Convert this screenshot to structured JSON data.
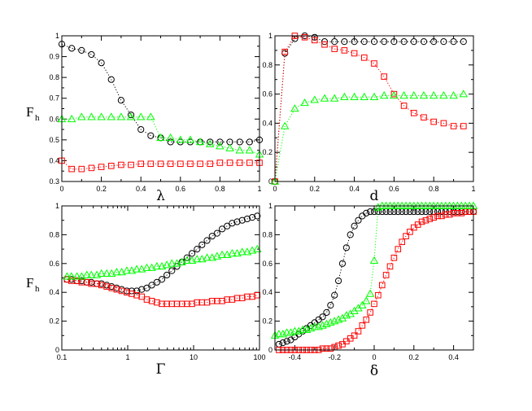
{
  "chart_data": [
    {
      "type": "scatter",
      "panel": "top-left",
      "xlabel": "λ",
      "ylabel": "F",
      "ylabel_sub": "h",
      "xlim": [
        0,
        1
      ],
      "ylim": [
        0.3,
        1
      ],
      "xticks": [
        "0",
        "0.2",
        "0.4",
        "0.6",
        "0.8",
        "1"
      ],
      "yticks": [
        "0.3",
        "0.4",
        "0.5",
        "0.6",
        "0.7",
        "0.8",
        "0.9",
        "1"
      ],
      "xtick_values": [
        0,
        0.2,
        0.4,
        0.6,
        0.8,
        1
      ],
      "ytick_values": [
        0.3,
        0.4,
        0.5,
        0.6,
        0.7,
        0.8,
        0.9,
        1
      ],
      "xscale": "linear",
      "series": [
        {
          "name": "black",
          "marker": "circle",
          "color": "#000000",
          "line": "dotted",
          "x": [
            0,
            0.05,
            0.1,
            0.15,
            0.2,
            0.25,
            0.3,
            0.35,
            0.4,
            0.45,
            0.5,
            0.55,
            0.6,
            0.65,
            0.7,
            0.75,
            0.8,
            0.85,
            0.9,
            0.95,
            1.0
          ],
          "y": [
            0.96,
            0.94,
            0.93,
            0.91,
            0.87,
            0.79,
            0.69,
            0.62,
            0.55,
            0.52,
            0.51,
            0.49,
            0.49,
            0.49,
            0.49,
            0.49,
            0.49,
            0.49,
            0.49,
            0.49,
            0.5
          ]
        },
        {
          "name": "red",
          "marker": "square",
          "color": "#ff0000",
          "line": "dotted",
          "x": [
            0,
            0.05,
            0.1,
            0.15,
            0.2,
            0.25,
            0.3,
            0.35,
            0.4,
            0.45,
            0.5,
            0.55,
            0.6,
            0.65,
            0.7,
            0.75,
            0.8,
            0.85,
            0.9,
            0.95,
            1.0
          ],
          "y": [
            0.4,
            0.36,
            0.36,
            0.365,
            0.37,
            0.375,
            0.38,
            0.38,
            0.385,
            0.385,
            0.385,
            0.385,
            0.385,
            0.385,
            0.385,
            0.385,
            0.39,
            0.39,
            0.39,
            0.39,
            0.39
          ]
        },
        {
          "name": "green",
          "marker": "triangle",
          "color": "#00ff00",
          "line": "dotted",
          "x": [
            0,
            0.05,
            0.1,
            0.15,
            0.2,
            0.25,
            0.3,
            0.35,
            0.4,
            0.45,
            0.5,
            0.55,
            0.6,
            0.65,
            0.7,
            0.75,
            0.8,
            0.85,
            0.9,
            0.95,
            1.0
          ],
          "y": [
            0.6,
            0.6,
            0.61,
            0.61,
            0.61,
            0.61,
            0.61,
            0.61,
            0.61,
            0.61,
            0.51,
            0.51,
            0.5,
            0.5,
            0.49,
            0.48,
            0.47,
            0.46,
            0.45,
            0.45,
            0.43
          ]
        }
      ]
    },
    {
      "type": "scatter",
      "panel": "top-right",
      "xlabel": "d",
      "xlim": [
        0,
        1
      ],
      "ylim": [
        0,
        1
      ],
      "xticks": [
        "0",
        "0.2",
        "0.4",
        "0.6",
        "0.8",
        "1"
      ],
      "yticks": [
        "0",
        "0.2",
        "0.4",
        "0.6",
        "0.8",
        "1"
      ],
      "xtick_values": [
        0,
        0.2,
        0.4,
        0.6,
        0.8,
        1
      ],
      "ytick_values": [
        0,
        0.2,
        0.4,
        0.6,
        0.8,
        1
      ],
      "xscale": "linear",
      "series": [
        {
          "name": "black",
          "marker": "circle",
          "color": "#000000",
          "line": "dotted",
          "x": [
            0,
            0.05,
            0.1,
            0.15,
            0.2,
            0.25,
            0.3,
            0.35,
            0.4,
            0.45,
            0.5,
            0.55,
            0.6,
            0.65,
            0.7,
            0.75,
            0.8,
            0.85,
            0.9,
            0.95
          ],
          "y": [
            0,
            0.88,
            0.98,
            1.0,
            0.99,
            0.96,
            0.96,
            0.96,
            0.96,
            0.96,
            0.96,
            0.96,
            0.96,
            0.96,
            0.96,
            0.96,
            0.96,
            0.96,
            0.96,
            0.96
          ]
        },
        {
          "name": "red",
          "marker": "square",
          "color": "#ff0000",
          "line": "dotted",
          "x": [
            0,
            0.05,
            0.1,
            0.15,
            0.2,
            0.25,
            0.3,
            0.35,
            0.4,
            0.45,
            0.5,
            0.55,
            0.6,
            0.65,
            0.7,
            0.75,
            0.8,
            0.85,
            0.9,
            0.95
          ],
          "y": [
            0,
            0.89,
            1.0,
            0.99,
            0.97,
            0.94,
            0.91,
            0.9,
            0.88,
            0.85,
            0.81,
            0.72,
            0.6,
            0.52,
            0.47,
            0.44,
            0.41,
            0.4,
            0.38,
            0.38
          ]
        },
        {
          "name": "green",
          "marker": "triangle",
          "color": "#00ff00",
          "line": "dotted",
          "x": [
            0,
            0.05,
            0.1,
            0.15,
            0.2,
            0.25,
            0.3,
            0.35,
            0.4,
            0.45,
            0.5,
            0.55,
            0.6,
            0.65,
            0.7,
            0.75,
            0.8,
            0.85,
            0.9,
            0.95
          ],
          "y": [
            0,
            0.38,
            0.5,
            0.54,
            0.56,
            0.57,
            0.57,
            0.58,
            0.58,
            0.58,
            0.58,
            0.59,
            0.59,
            0.59,
            0.59,
            0.59,
            0.59,
            0.59,
            0.59,
            0.6
          ]
        }
      ]
    },
    {
      "type": "scatter",
      "panel": "bottom-left",
      "xlabel": "Γ",
      "ylabel": "F",
      "ylabel_sub": "h",
      "xlim": [
        0.1,
        100
      ],
      "ylim": [
        0,
        1
      ],
      "xticks": [
        "0.1",
        "1",
        "10",
        "100"
      ],
      "yticks": [
        "0",
        "0.2",
        "0.4",
        "0.6",
        "0.8",
        "1"
      ],
      "xtick_values": [
        0.1,
        1,
        10,
        100
      ],
      "ytick_values": [
        0,
        0.2,
        0.4,
        0.6,
        0.8,
        1
      ],
      "xscale": "log",
      "series": [
        {
          "name": "black",
          "marker": "circle",
          "color": "#000000",
          "line": "dotted",
          "x": [
            0.12,
            0.14,
            0.17,
            0.2,
            0.24,
            0.28,
            0.34,
            0.4,
            0.48,
            0.57,
            0.68,
            0.81,
            0.97,
            1.15,
            1.37,
            1.63,
            1.95,
            2.32,
            2.77,
            3.3,
            3.93,
            4.68,
            5.58,
            6.65,
            7.93,
            9.45,
            11.3,
            13.4,
            16.0,
            19.1,
            22.7,
            27.1,
            32.3,
            38.5,
            45.8,
            54.6,
            65.1,
            77.6,
            92.5
          ],
          "y": [
            0.49,
            0.49,
            0.48,
            0.48,
            0.47,
            0.47,
            0.46,
            0.46,
            0.45,
            0.44,
            0.43,
            0.42,
            0.41,
            0.41,
            0.41,
            0.42,
            0.43,
            0.45,
            0.47,
            0.49,
            0.52,
            0.55,
            0.58,
            0.61,
            0.64,
            0.67,
            0.7,
            0.73,
            0.76,
            0.79,
            0.81,
            0.84,
            0.86,
            0.88,
            0.89,
            0.9,
            0.91,
            0.92,
            0.93
          ]
        },
        {
          "name": "red",
          "marker": "square",
          "color": "#ff0000",
          "line": "dotted",
          "x": [
            0.12,
            0.14,
            0.17,
            0.2,
            0.24,
            0.28,
            0.34,
            0.4,
            0.48,
            0.57,
            0.68,
            0.81,
            0.97,
            1.15,
            1.37,
            1.63,
            1.95,
            2.32,
            2.77,
            3.3,
            3.93,
            4.68,
            5.58,
            6.65,
            7.93,
            9.45,
            11.3,
            13.4,
            16.0,
            19.1,
            22.7,
            27.1,
            32.3,
            38.5,
            45.8,
            54.6,
            65.1,
            77.6,
            92.5
          ],
          "y": [
            0.49,
            0.48,
            0.48,
            0.47,
            0.47,
            0.46,
            0.46,
            0.45,
            0.44,
            0.43,
            0.42,
            0.41,
            0.4,
            0.39,
            0.38,
            0.37,
            0.35,
            0.34,
            0.33,
            0.32,
            0.32,
            0.32,
            0.32,
            0.32,
            0.32,
            0.32,
            0.33,
            0.33,
            0.33,
            0.34,
            0.34,
            0.34,
            0.35,
            0.35,
            0.36,
            0.36,
            0.37,
            0.37,
            0.38
          ]
        },
        {
          "name": "green",
          "marker": "triangle",
          "color": "#00ff00",
          "line": "dotted",
          "x": [
            0.12,
            0.14,
            0.17,
            0.2,
            0.24,
            0.28,
            0.34,
            0.4,
            0.48,
            0.57,
            0.68,
            0.81,
            0.97,
            1.15,
            1.37,
            1.63,
            1.95,
            2.32,
            2.77,
            3.3,
            3.93,
            4.68,
            5.58,
            6.65,
            7.93,
            9.45,
            11.3,
            13.4,
            16.0,
            19.1,
            22.7,
            27.1,
            32.3,
            38.5,
            45.8,
            54.6,
            65.1,
            77.6,
            92.5
          ],
          "y": [
            0.51,
            0.51,
            0.51,
            0.51,
            0.52,
            0.52,
            0.52,
            0.53,
            0.53,
            0.53,
            0.54,
            0.54,
            0.55,
            0.55,
            0.56,
            0.56,
            0.57,
            0.57,
            0.58,
            0.58,
            0.59,
            0.6,
            0.6,
            0.61,
            0.62,
            0.62,
            0.63,
            0.63,
            0.64,
            0.64,
            0.65,
            0.66,
            0.66,
            0.67,
            0.67,
            0.68,
            0.68,
            0.69,
            0.7
          ]
        }
      ]
    },
    {
      "type": "scatter",
      "panel": "bottom-right",
      "xlabel": "δ",
      "xlim": [
        -0.5,
        0.5
      ],
      "ylim": [
        0,
        1
      ],
      "xticks": [
        "-0.4",
        "-0.2",
        "0",
        "0.2",
        "0.4"
      ],
      "yticks": [
        "0",
        "0.2",
        "0.4",
        "0.6",
        "0.8",
        "1"
      ],
      "xtick_values": [
        -0.4,
        -0.2,
        0,
        0.2,
        0.4
      ],
      "ytick_values": [
        0,
        0.2,
        0.4,
        0.6,
        0.8,
        1
      ],
      "xscale": "linear",
      "series": [
        {
          "name": "black",
          "marker": "circle",
          "color": "#000000",
          "line": "dotted",
          "x": [
            -0.48,
            -0.46,
            -0.44,
            -0.42,
            -0.4,
            -0.38,
            -0.36,
            -0.34,
            -0.32,
            -0.3,
            -0.28,
            -0.26,
            -0.24,
            -0.22,
            -0.2,
            -0.18,
            -0.16,
            -0.14,
            -0.12,
            -0.1,
            -0.08,
            -0.06,
            -0.04,
            -0.02,
            0.0,
            0.02,
            0.04,
            0.06,
            0.08,
            0.1,
            0.12,
            0.14,
            0.16,
            0.18,
            0.2,
            0.22,
            0.24,
            0.26,
            0.28,
            0.3,
            0.32,
            0.34,
            0.36,
            0.38,
            0.4,
            0.42,
            0.44,
            0.46,
            0.48,
            0.5
          ],
          "y": [
            0.04,
            0.05,
            0.06,
            0.07,
            0.09,
            0.11,
            0.13,
            0.15,
            0.17,
            0.19,
            0.21,
            0.23,
            0.26,
            0.31,
            0.38,
            0.48,
            0.6,
            0.71,
            0.8,
            0.86,
            0.9,
            0.93,
            0.95,
            0.96,
            0.96,
            0.96,
            0.96,
            0.96,
            0.96,
            0.96,
            0.96,
            0.96,
            0.96,
            0.96,
            0.96,
            0.96,
            0.96,
            0.96,
            0.96,
            0.96,
            0.96,
            0.96,
            0.96,
            0.96,
            0.96,
            0.96,
            0.96,
            0.96,
            0.96,
            0.96
          ]
        },
        {
          "name": "red",
          "marker": "square",
          "color": "#ff0000",
          "line": "dotted",
          "x": [
            -0.48,
            -0.46,
            -0.44,
            -0.42,
            -0.4,
            -0.38,
            -0.36,
            -0.34,
            -0.32,
            -0.3,
            -0.28,
            -0.26,
            -0.24,
            -0.22,
            -0.2,
            -0.18,
            -0.16,
            -0.14,
            -0.12,
            -0.1,
            -0.08,
            -0.06,
            -0.04,
            -0.02,
            0.0,
            0.02,
            0.04,
            0.06,
            0.08,
            0.1,
            0.12,
            0.14,
            0.16,
            0.18,
            0.2,
            0.22,
            0.24,
            0.26,
            0.28,
            0.3,
            0.32,
            0.34,
            0.36,
            0.38,
            0.4,
            0.42,
            0.44,
            0.46,
            0.48,
            0.5
          ],
          "y": [
            0.0,
            0.0,
            0.0,
            0.0,
            0.0,
            0.0,
            0.0,
            0.0,
            0.0,
            0.0,
            0.0,
            0.01,
            0.01,
            0.01,
            0.02,
            0.03,
            0.04,
            0.06,
            0.08,
            0.1,
            0.13,
            0.17,
            0.21,
            0.26,
            0.32,
            0.38,
            0.45,
            0.52,
            0.58,
            0.64,
            0.7,
            0.75,
            0.79,
            0.82,
            0.85,
            0.87,
            0.89,
            0.9,
            0.91,
            0.92,
            0.93,
            0.93,
            0.94,
            0.94,
            0.95,
            0.95,
            0.95,
            0.96,
            0.96,
            0.96
          ]
        },
        {
          "name": "green",
          "marker": "triangle",
          "color": "#00ff00",
          "line": "dotted",
          "x": [
            -0.5,
            -0.48,
            -0.46,
            -0.44,
            -0.42,
            -0.4,
            -0.38,
            -0.36,
            -0.34,
            -0.32,
            -0.3,
            -0.28,
            -0.26,
            -0.24,
            -0.22,
            -0.2,
            -0.18,
            -0.16,
            -0.14,
            -0.12,
            -0.1,
            -0.08,
            -0.06,
            -0.04,
            -0.02,
            0.0,
            0.02,
            0.04,
            0.06,
            0.08,
            0.1,
            0.12,
            0.14,
            0.16,
            0.18,
            0.2,
            0.22,
            0.24,
            0.26,
            0.28,
            0.3,
            0.32,
            0.34,
            0.36,
            0.38,
            0.4,
            0.42,
            0.44,
            0.46,
            0.48,
            0.5
          ],
          "y": [
            0.1,
            0.11,
            0.11,
            0.12,
            0.12,
            0.13,
            0.13,
            0.14,
            0.14,
            0.15,
            0.16,
            0.16,
            0.17,
            0.18,
            0.19,
            0.2,
            0.21,
            0.22,
            0.24,
            0.25,
            0.27,
            0.29,
            0.31,
            0.34,
            0.39,
            0.62,
            0.99,
            1.0,
            1.0,
            1.0,
            1.0,
            1.0,
            1.0,
            1.0,
            1.0,
            1.0,
            1.0,
            1.0,
            1.0,
            1.0,
            1.0,
            1.0,
            1.0,
            1.0,
            1.0,
            1.0,
            1.0,
            1.0,
            1.0,
            1.0,
            1.0
          ]
        }
      ]
    }
  ]
}
